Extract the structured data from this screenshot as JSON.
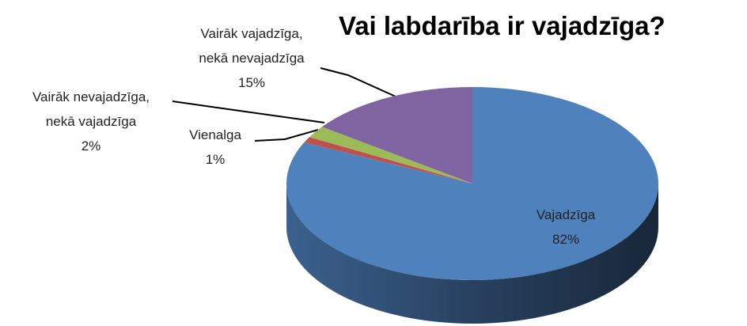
{
  "chart_data": {
    "type": "pie3d",
    "title": "Vai labdarība ir vajadzīga?",
    "categories": [
      "Vajadzīga",
      "Vienalga",
      "Vairāk nevajadzīga, nekā vajadzīga",
      "Vairāk vajadzīga, nekā nevajadzīga"
    ],
    "values": [
      82,
      1,
      2,
      15
    ],
    "value_labels": [
      "82%",
      "1%",
      "2%",
      "15%"
    ],
    "colors": [
      "#4f81bd",
      "#c0504d",
      "#9bbb59",
      "#8064a2"
    ]
  }
}
